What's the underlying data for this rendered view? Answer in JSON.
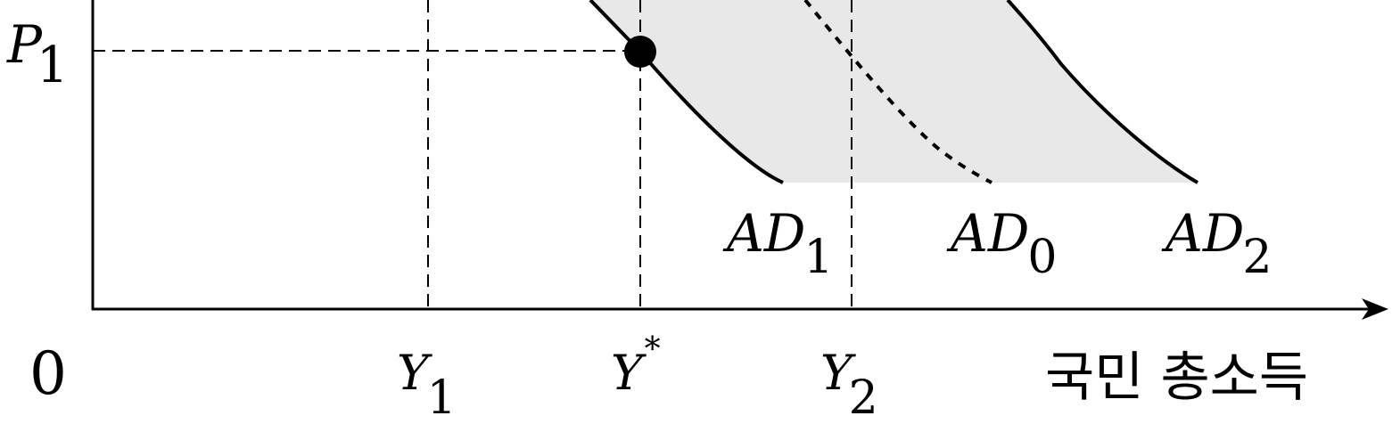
{
  "axes": {
    "origin_label": "0",
    "x_axis_label": "국민 총소득",
    "price_label": {
      "base": "P",
      "sub": "1"
    }
  },
  "x_ticks": {
    "y1": {
      "base": "Y",
      "sub": "1"
    },
    "ystar": {
      "base": "Y",
      "sup": "*"
    },
    "y2": {
      "base": "Y",
      "sub": "2"
    }
  },
  "curves": {
    "ad1": {
      "base": "AD",
      "sub": "1",
      "style": "solid"
    },
    "ad0": {
      "base": "AD",
      "sub": "0",
      "style": "dotted"
    },
    "ad2": {
      "base": "AD",
      "sub": "2",
      "style": "solid"
    }
  },
  "colors": {
    "ink": "#000000",
    "shaded_region": "#e8e8e8",
    "background": "#ffffff"
  }
}
